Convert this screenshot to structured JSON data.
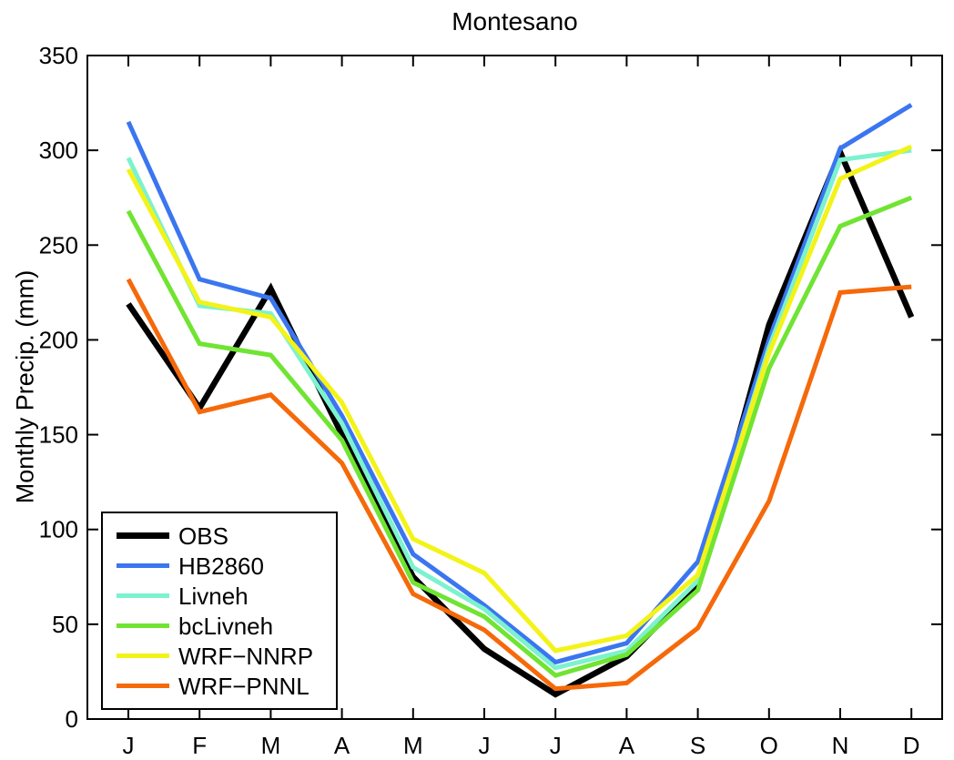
{
  "chart_data": {
    "type": "line",
    "title": "Montesano",
    "xlabel": "",
    "ylabel": "Monthly Precip. (mm)",
    "categories": [
      "J",
      "F",
      "M",
      "A",
      "M",
      "J",
      "J",
      "A",
      "S",
      "O",
      "N",
      "D"
    ],
    "ylim": [
      0,
      350
    ],
    "yticks": [
      0,
      50,
      100,
      150,
      200,
      250,
      300,
      350
    ],
    "grid": false,
    "legend_position": "lower-left",
    "axis_color": "#000000",
    "background_color": "#ffffff",
    "series": [
      {
        "name": "OBS",
        "color": "#000000",
        "linewidth": 6.5,
        "values": [
          219,
          164,
          227,
          150,
          75,
          37,
          13,
          33,
          71,
          208,
          299,
          212
        ]
      },
      {
        "name": "HB2860",
        "color": "#3B76F0",
        "linewidth": 5,
        "values": [
          315,
          232,
          222,
          160,
          87,
          60,
          30,
          40,
          83,
          200,
          301,
          324
        ]
      },
      {
        "name": "Livneh",
        "color": "#7CF2CF",
        "linewidth": 5,
        "values": [
          296,
          218,
          214,
          156,
          80,
          58,
          27,
          36,
          73,
          196,
          295,
          300
        ]
      },
      {
        "name": "bcLivneh",
        "color": "#70E432",
        "linewidth": 5,
        "values": [
          268,
          198,
          192,
          147,
          72,
          54,
          23,
          34,
          68,
          185,
          260,
          275
        ]
      },
      {
        "name": "WRF−NNRP",
        "color": "#F3F318",
        "linewidth": 5,
        "values": [
          290,
          220,
          212,
          167,
          95,
          77,
          36,
          44,
          76,
          193,
          285,
          302
        ]
      },
      {
        "name": "WRF−PNNL",
        "color": "#F5690A",
        "linewidth": 5,
        "values": [
          232,
          162,
          171,
          135,
          66,
          47,
          16,
          19,
          48,
          115,
          225,
          228
        ]
      }
    ]
  }
}
